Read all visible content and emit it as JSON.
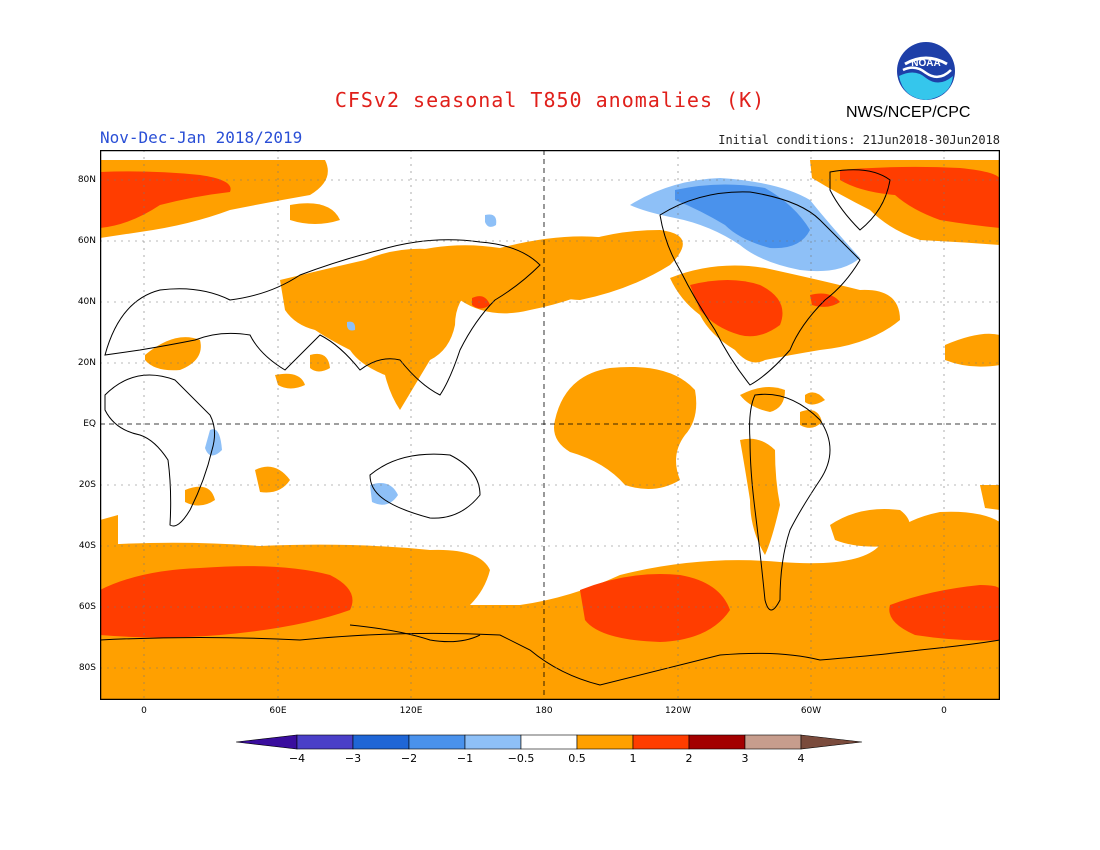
{
  "header": {
    "title": "CFSv2 seasonal T850 anomalies (K)",
    "season": "Nov-Dec-Jan 2018/2019",
    "initial_conditions": "Initial conditions: 21Jun2018-30Jun2018",
    "agency": "NWS/NCEP/CPC",
    "logo_text": "NOAA"
  },
  "map": {
    "lat_ticks": [
      "80N",
      "60N",
      "40N",
      "20N",
      "EQ",
      "20S",
      "40S",
      "60S",
      "80S"
    ],
    "lon_ticks": [
      "0",
      "60E",
      "120E",
      "180",
      "120W",
      "60W",
      "0"
    ]
  },
  "legend": {
    "labels": [
      "−4",
      "−3",
      "−2",
      "−1",
      "−0.5",
      "0.5",
      "1",
      "2",
      "3",
      "4"
    ],
    "colors": {
      "lt_-4": "#3a0d9e",
      "-4_-3": "#4a3fc8",
      "-3_-2": "#1f66d6",
      "-2_-1": "#4a92ec",
      "-1_-0.5": "#8ec0f7",
      "-0.5_0.5": "#ffffff",
      "0.5_1": "#ffa000",
      "1_2": "#ff3d00",
      "2_3": "#a30000",
      "3_4": "#c79d8d",
      "gt_4": "#7a4b3c"
    }
  }
}
